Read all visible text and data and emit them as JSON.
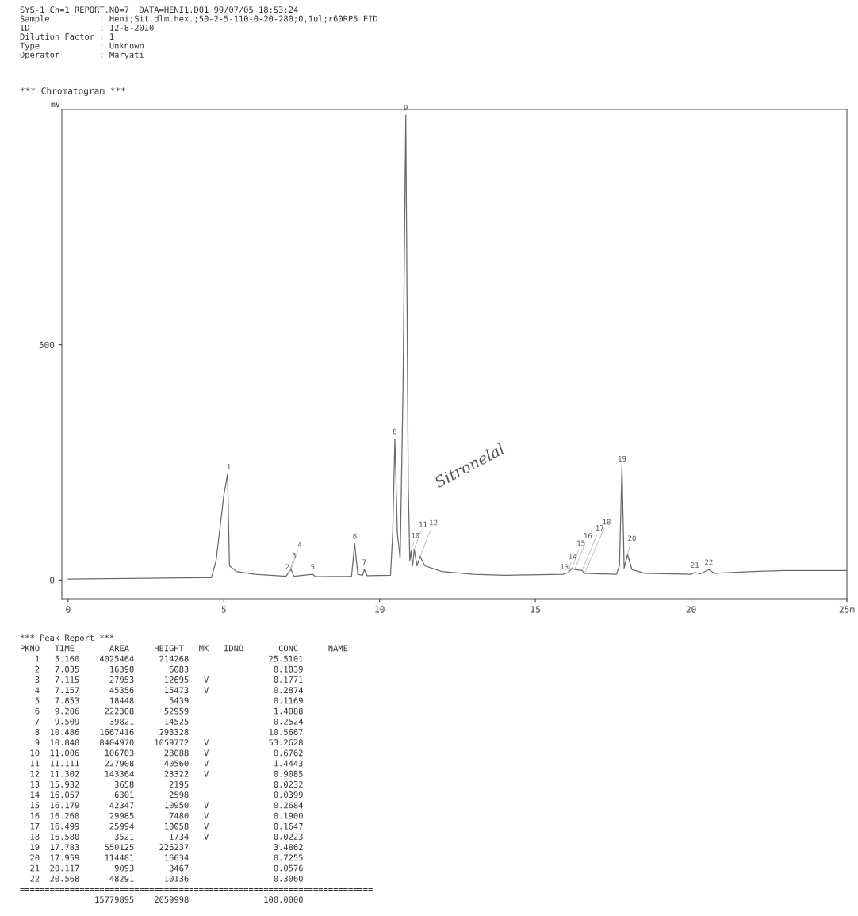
{
  "chart_data": {
    "type": "line",
    "title": "*** Chromatogram ***",
    "subtitle": "SYS-1 Ch=1 REPORT.NO=7  DATA=HENI1.D01 99/07/05 18:53:24\nSample          : Heni;Sit.dlm.hex.;50-2-5-110-0-20-280;0,1ul;r60RP5 FID\nID              : 12-8-2010\nDilution Factor : 1\nType            : Unknown\nOperator        : Maryati",
    "ylabel": "mV",
    "xlim": [
      -0.2,
      25
    ],
    "xticks": [
      0,
      5,
      10,
      15,
      20,
      {
        "value": 25,
        "label": "25m"
      }
    ],
    "ylim": [
      -40,
      1000
    ],
    "yticks": [
      0,
      500
    ],
    "grid": false,
    "legend": false,
    "marker": "none",
    "line_style": "solid",
    "series": [
      {
        "color": "#6a6a6a",
        "x": [
          0,
          4.6,
          4.75,
          5.0,
          5.12,
          5.18,
          5.4,
          6,
          7,
          7.04,
          7.1,
          7.16,
          7.25,
          7.85,
          7.95,
          9.1,
          9.2,
          9.3,
          9.45,
          9.51,
          9.6,
          10.35,
          10.42,
          10.49,
          10.57,
          10.66,
          10.75,
          10.84,
          10.92,
          10.97,
          11.01,
          11.06,
          11.11,
          11.2,
          11.3,
          11.45,
          12,
          13,
          14,
          15.9,
          16.06,
          16.18,
          16.26,
          16.5,
          16.58,
          17.6,
          17.7,
          17.78,
          17.85,
          17.96,
          18.1,
          18.5,
          20,
          20.12,
          20.3,
          20.57,
          20.75,
          22,
          23,
          25
        ],
        "values": [
          2,
          5,
          40,
          180,
          225,
          30,
          18,
          12,
          8,
          12,
          18,
          22,
          8,
          12,
          7,
          8,
          77,
          12,
          10,
          22,
          9,
          10,
          100,
          300,
          100,
          45,
          400,
          988,
          200,
          40,
          60,
          30,
          65,
          30,
          50,
          30,
          18,
          12,
          10,
          12,
          16,
          25,
          22,
          20,
          14,
          12,
          30,
          242,
          25,
          54,
          22,
          14,
          12,
          16,
          13,
          22,
          14,
          18,
          20,
          20
        ]
      }
    ],
    "annotations": [
      {
        "text": "1",
        "x": 5.16,
        "y": 225
      },
      {
        "text": "2",
        "x": 7.035,
        "y": 12
      },
      {
        "text": "3",
        "x": 7.115,
        "y": 18
      },
      {
        "text": "4",
        "x": 7.157,
        "y": 22
      },
      {
        "text": "5",
        "x": 7.853,
        "y": 12
      },
      {
        "text": "6",
        "x": 9.206,
        "y": 77
      },
      {
        "text": "7",
        "x": 9.509,
        "y": 22
      },
      {
        "text": "8",
        "x": 10.486,
        "y": 300
      },
      {
        "text": "9",
        "x": 10.84,
        "y": 988
      },
      {
        "text": "10",
        "x": 11.006,
        "y": 60
      },
      {
        "text": "11",
        "x": 11.111,
        "y": 65
      },
      {
        "text": "12",
        "x": 11.302,
        "y": 50
      },
      {
        "text": "13",
        "x": 15.932,
        "y": 12
      },
      {
        "text": "14",
        "x": 16.057,
        "y": 16
      },
      {
        "text": "15",
        "x": 16.179,
        "y": 25
      },
      {
        "text": "16",
        "x": 16.26,
        "y": 22
      },
      {
        "text": "17",
        "x": 16.499,
        "y": 20
      },
      {
        "text": "18",
        "x": 16.58,
        "y": 14
      },
      {
        "text": "19",
        "x": 17.783,
        "y": 242
      },
      {
        "text": "20",
        "x": 17.959,
        "y": 54
      },
      {
        "text": "21",
        "x": 20.117,
        "y": 16
      },
      {
        "text": "22",
        "x": 20.568,
        "y": 22
      },
      "Sitronelal",
      "*** Peak Report ***",
      "PKNO   TIME       AREA     HEIGHT   MK   IDNO       CONC      NAME",
      "   1   5.160    4025464     214268                25.5101",
      "   2   7.035      16390       6083                 0.1039",
      "   3   7.115      27953      12695   V             0.1771",
      "   4   7.157      45356      15473   V             0.2874",
      "   5   7.853      18448       5439                 0.1169",
      "   6   9.206     222308      52959                 1.4088",
      "   7   9.509      39821      14525                 0.2524",
      "   8  10.486    1667416     293328                10.5667",
      "   9  10.840    8404970    1059772   V            53.2628",
      "  10  11.006     106703      28088   V             0.6762",
      "  11  11.111     227908      40560   V             1.4443",
      "  12  11.302     143364      23322   V             0.9085",
      "  13  15.932       3658       2195                 0.0232",
      "  14  16.057       6301       2598                 0.0399",
      "  15  16.179      42347      10950   V             0.2684",
      "  16  16.260      29985       7480   V             0.1900",
      "  17  16.499      25994      10058   V             0.1647",
      "  18  16.580       3521       1734   V             0.0223",
      "  19  17.783     550125     226237                 3.4862",
      "  20  17.959     114481      16634                 0.7255",
      "  21  20.117       9093       3467                 0.0576",
      "  22  20.568      48291      10136                 0.3060",
      "=======================================================================",
      "               15779895    2059998               100.0000"
    ]
  }
}
